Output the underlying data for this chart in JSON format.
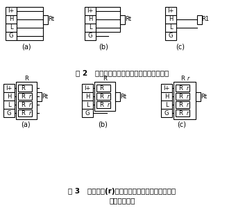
{
  "fig2_title": "图 2   智能测量前端与热电阻的三种连接方式",
  "fig3_line1": "图 3   引线电阻(r)较大时智能测量前端与热电阻的",
  "fig3_line2": "三种连接方式",
  "labels_a": "(a)",
  "labels_b": "(b)",
  "labels_c": "(c)",
  "terminal_labels": [
    "I+",
    "H",
    "L",
    "G"
  ],
  "Rt_label": "Rt",
  "R1_label": "R1",
  "bg_color": "#ffffff"
}
